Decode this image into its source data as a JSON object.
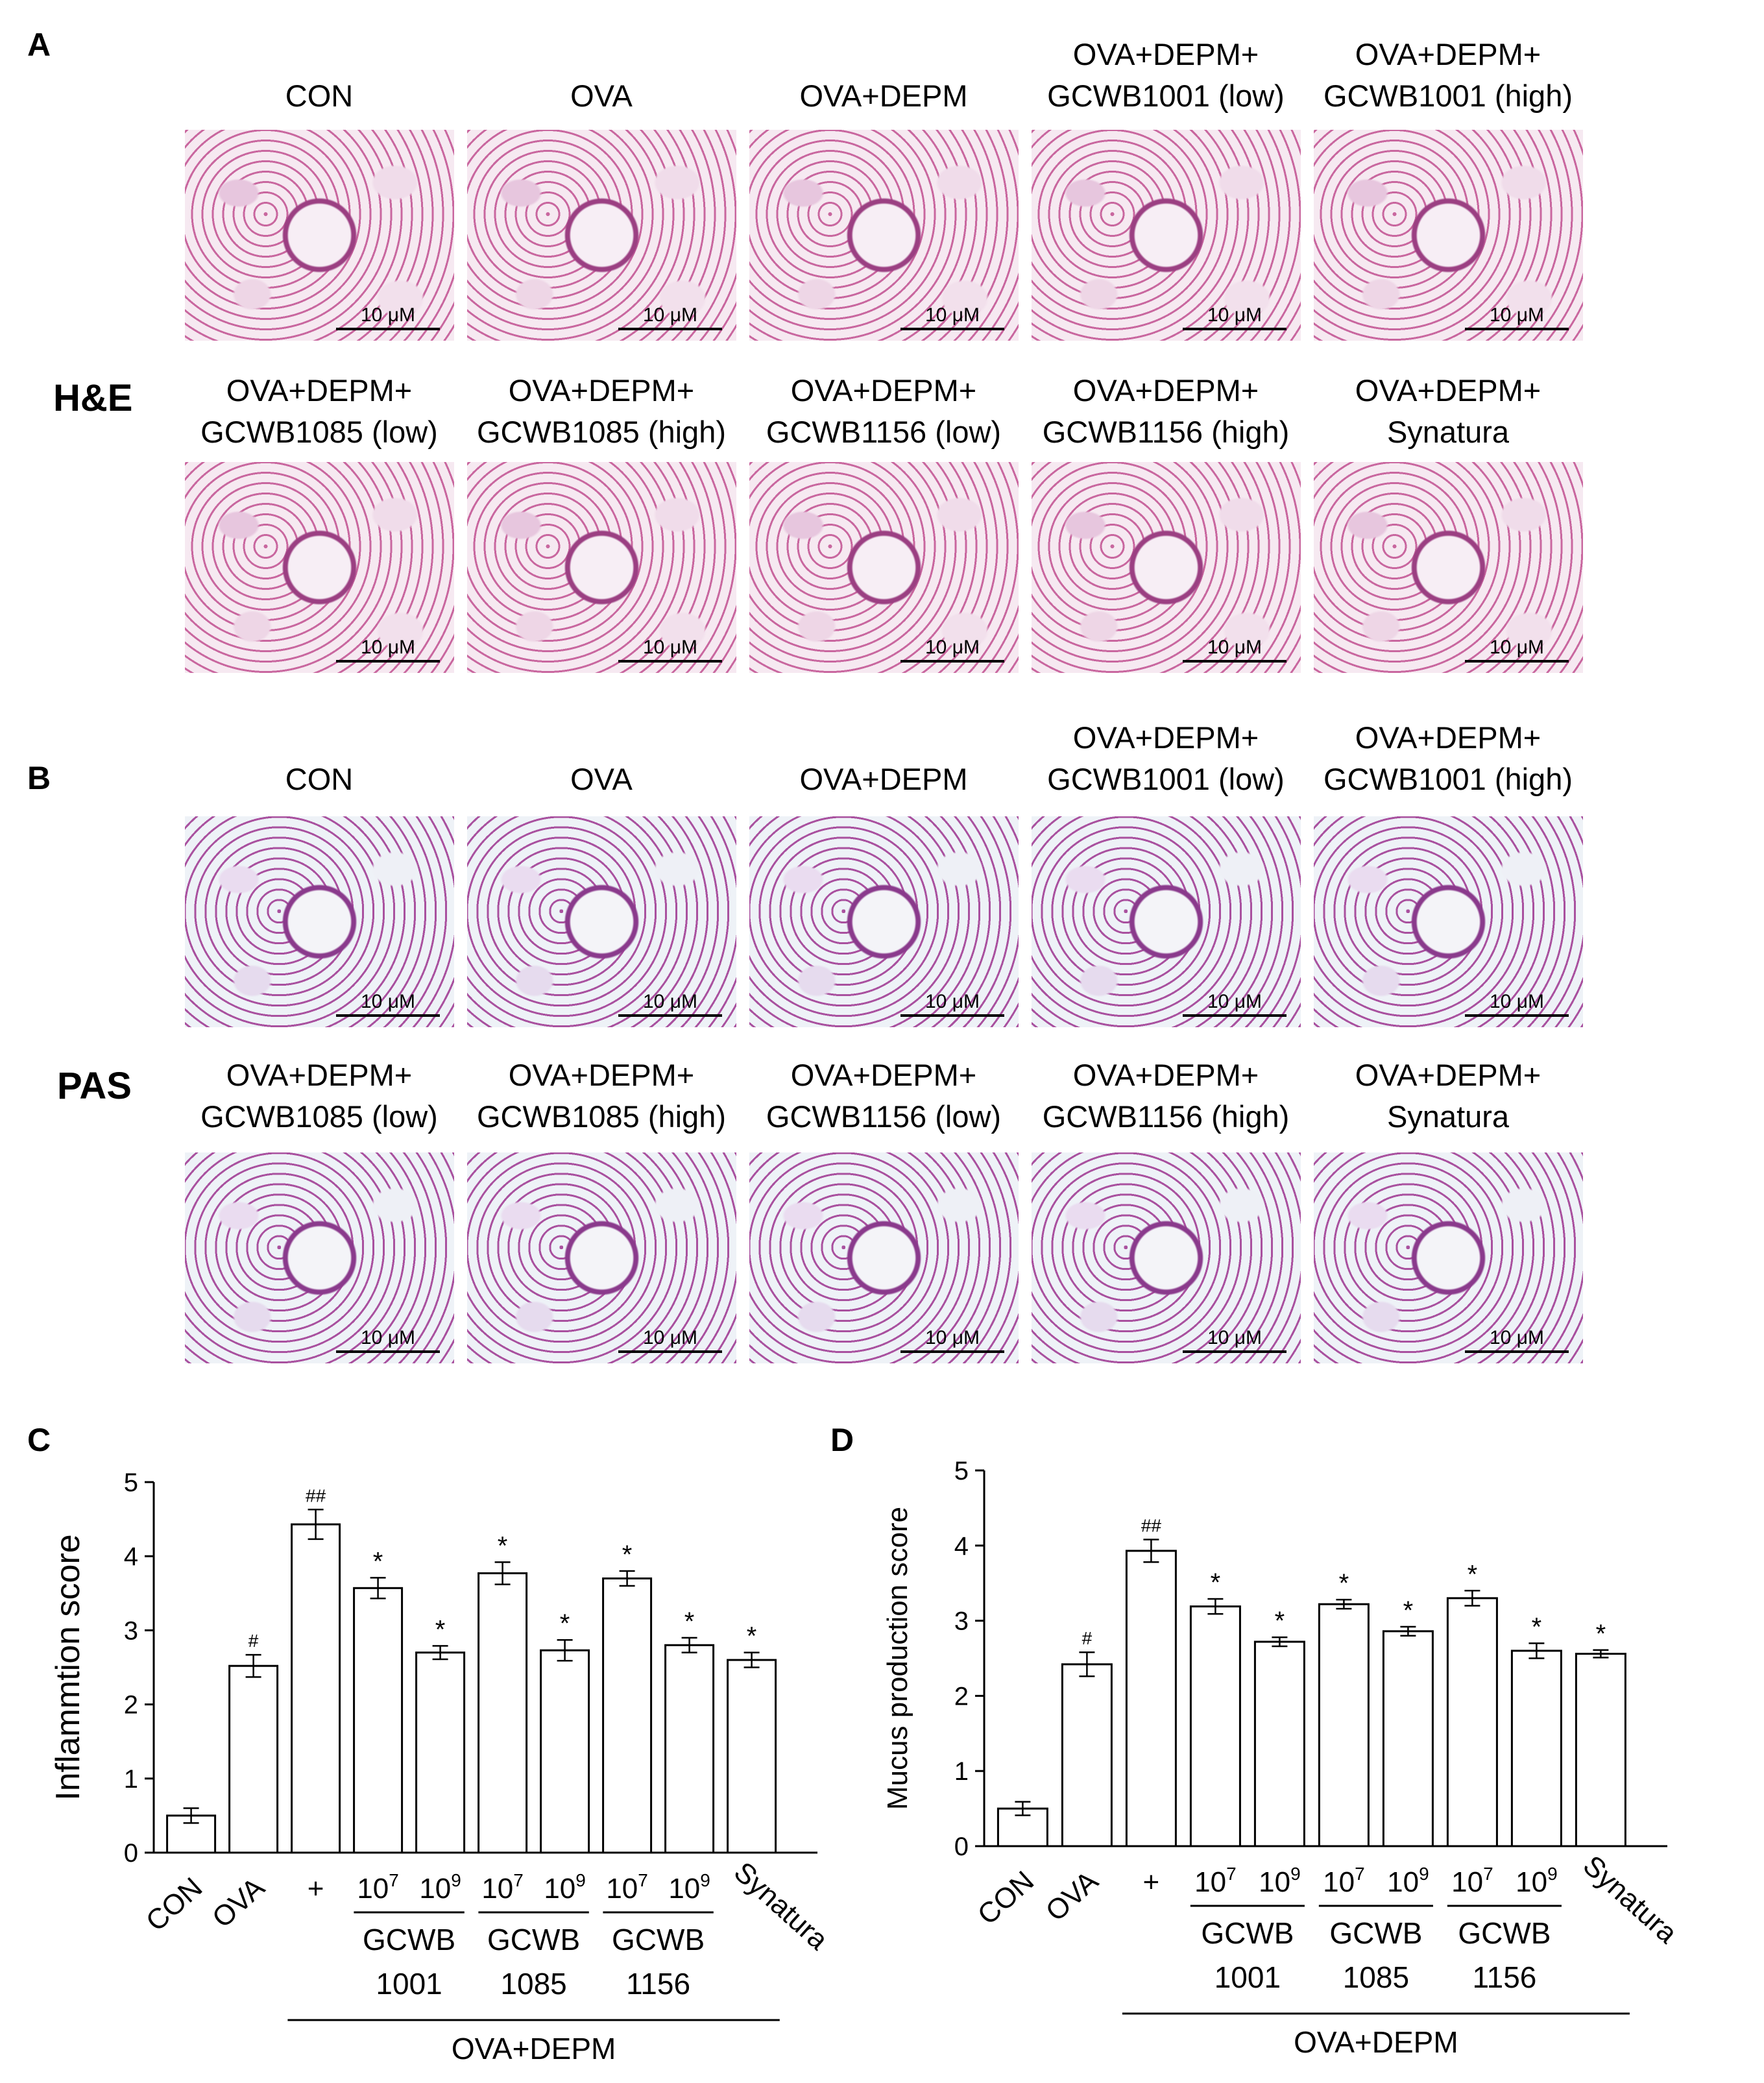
{
  "panels": {
    "A": {
      "letter": "A",
      "stain": "H&E",
      "row1": [
        {
          "l1": "CON",
          "l2": ""
        },
        {
          "l1": "OVA",
          "l2": ""
        },
        {
          "l1": "OVA+DEPM",
          "l2": ""
        },
        {
          "l1": "OVA+DEPM+",
          "l2": "GCWB1001 (low)"
        },
        {
          "l1": "OVA+DEPM+",
          "l2": "GCWB1001 (high)"
        }
      ],
      "row2": [
        {
          "l1": "OVA+DEPM+",
          "l2": "GCWB1085 (low)"
        },
        {
          "l1": "OVA+DEPM+",
          "l2": "GCWB1085 (high)"
        },
        {
          "l1": "OVA+DEPM+",
          "l2": "GCWB1156 (low)"
        },
        {
          "l1": "OVA+DEPM+",
          "l2": "GCWB1156 (high)"
        },
        {
          "l1": "OVA+DEPM+",
          "l2": "Synatura"
        }
      ]
    },
    "B": {
      "letter": "B",
      "stain": "PAS",
      "row1": [
        {
          "l1": "CON",
          "l2": ""
        },
        {
          "l1": "OVA",
          "l2": ""
        },
        {
          "l1": "OVA+DEPM",
          "l2": ""
        },
        {
          "l1": "OVA+DEPM+",
          "l2": "GCWB1001 (low)"
        },
        {
          "l1": "OVA+DEPM+",
          "l2": "GCWB1001 (high)"
        }
      ],
      "row2": [
        {
          "l1": "OVA+DEPM+",
          "l2": "GCWB1085 (low)"
        },
        {
          "l1": "OVA+DEPM+",
          "l2": "GCWB1085 (high)"
        },
        {
          "l1": "OVA+DEPM+",
          "l2": "GCWB1156 (low)"
        },
        {
          "l1": "OVA+DEPM+",
          "l2": "GCWB1156 (high)"
        },
        {
          "l1": "OVA+DEPM+",
          "l2": "Synatura"
        }
      ]
    }
  },
  "scale_bar": "10 μM",
  "chart_data": [
    {
      "panel": "C",
      "type": "bar",
      "ylabel": "Inflammtion score",
      "ylim": [
        0,
        5
      ],
      "yticks": [
        "0",
        "1",
        "2",
        "3",
        "4",
        "5"
      ],
      "categories": [
        "CON",
        "OVA",
        "+",
        "10^7",
        "10^9",
        "10^7",
        "10^9",
        "10^7",
        "10^9",
        "Synatura"
      ],
      "values": [
        0.5,
        2.52,
        4.43,
        3.57,
        2.7,
        3.77,
        2.73,
        3.7,
        2.8,
        2.6
      ],
      "errors": [
        0.1,
        0.15,
        0.2,
        0.14,
        0.09,
        0.15,
        0.14,
        0.1,
        0.1,
        0.1
      ],
      "annotations": [
        "",
        "#",
        "##",
        "*",
        "*",
        "*",
        "*",
        "*",
        "*",
        "*"
      ],
      "groups": [
        {
          "l1": "GCWB",
          "l2": "1001"
        },
        {
          "l1": "GCWB",
          "l2": "1085"
        },
        {
          "l1": "GCWB",
          "l2": "1156"
        }
      ],
      "treatment_label": "OVA+DEPM"
    },
    {
      "panel": "D",
      "type": "bar",
      "ylabel": "Mucus production score",
      "ylim": [
        0,
        5
      ],
      "yticks": [
        "0",
        "1",
        "2",
        "3",
        "4",
        "5"
      ],
      "categories": [
        "CON",
        "OVA",
        "+",
        "10^7",
        "10^9",
        "10^7",
        "10^9",
        "10^7",
        "10^9",
        "Synatura"
      ],
      "values": [
        0.5,
        2.42,
        3.93,
        3.19,
        2.72,
        3.22,
        2.86,
        3.3,
        2.6,
        2.56
      ],
      "errors": [
        0.09,
        0.16,
        0.15,
        0.1,
        0.06,
        0.06,
        0.06,
        0.1,
        0.1,
        0.05
      ],
      "annotations": [
        "",
        "#",
        "##",
        "*",
        "*",
        "*",
        "*",
        "*",
        "*",
        "*"
      ],
      "groups": [
        {
          "l1": "GCWB",
          "l2": "1001"
        },
        {
          "l1": "GCWB",
          "l2": "1085"
        },
        {
          "l1": "GCWB",
          "l2": "1156"
        }
      ],
      "treatment_label": "OVA+DEPM"
    }
  ]
}
